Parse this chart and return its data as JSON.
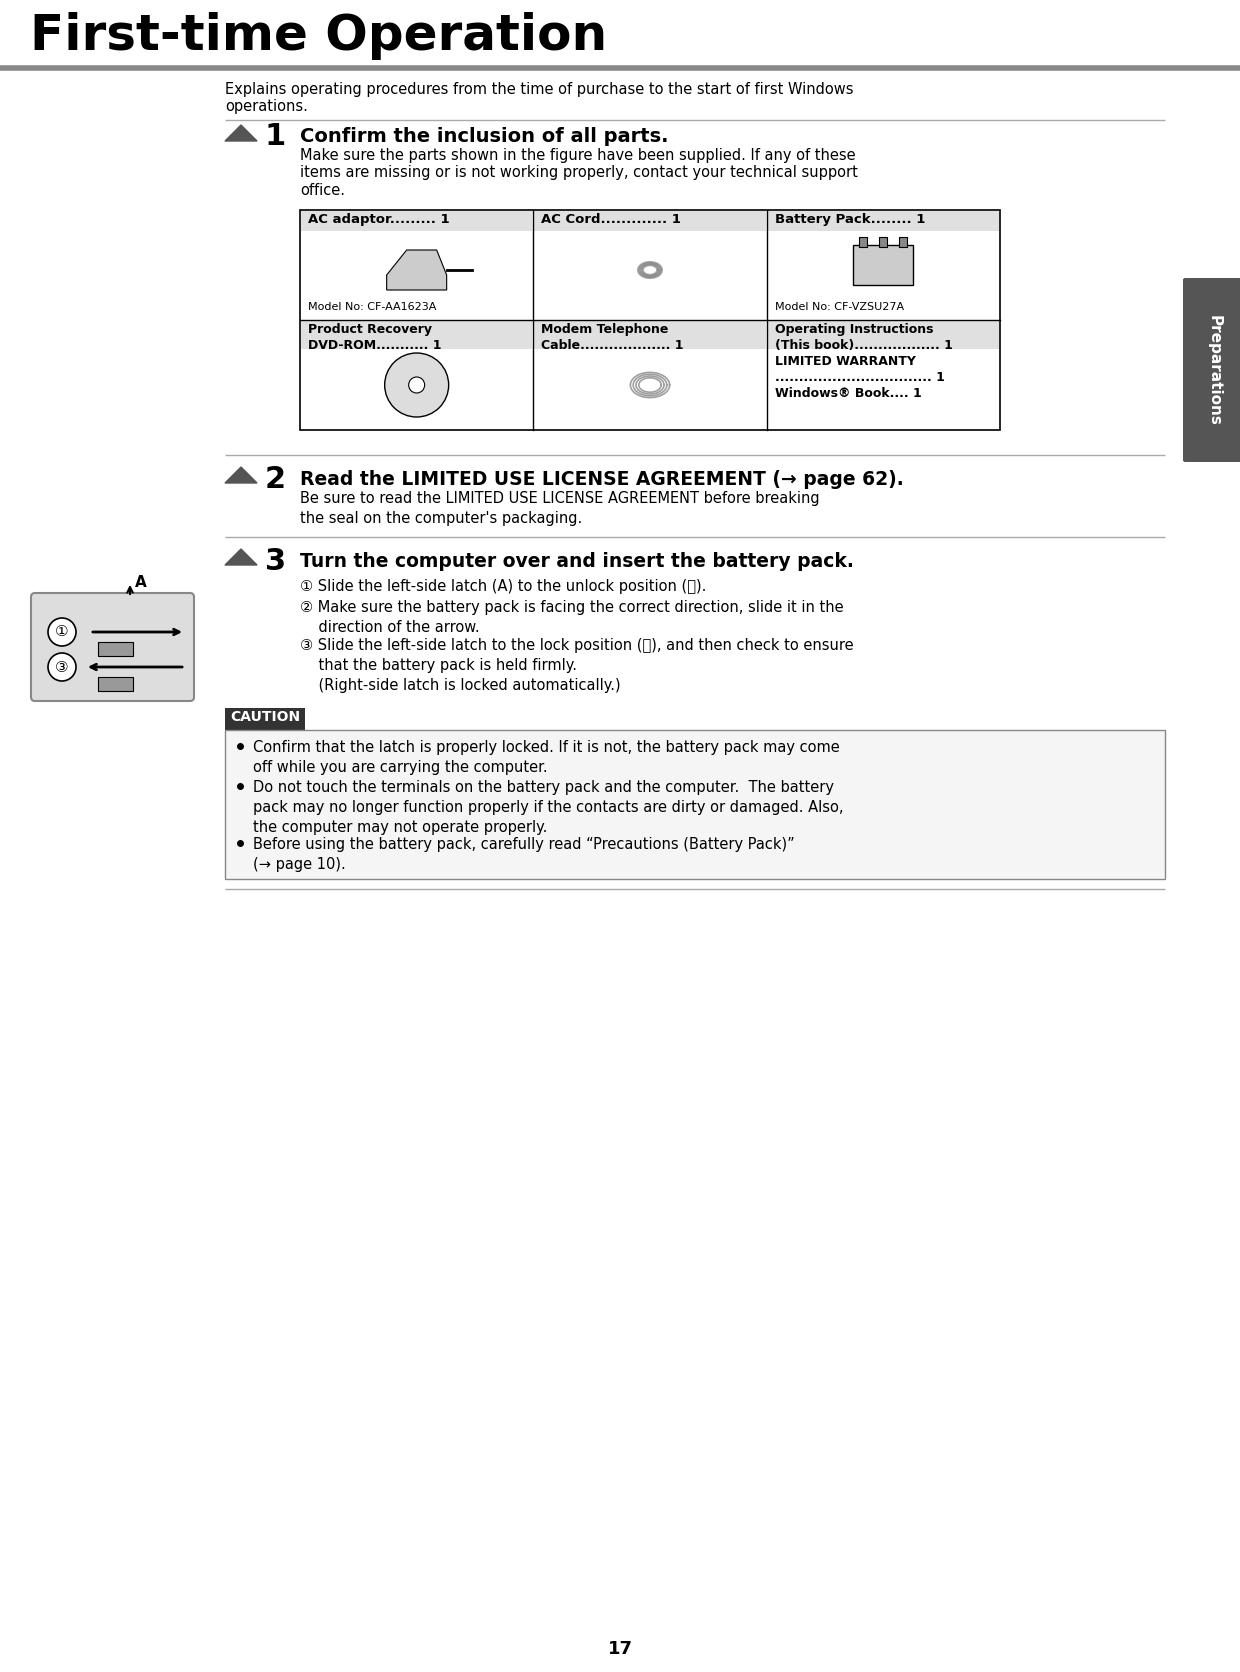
{
  "page_title": "First-time Operation",
  "page_number": "17",
  "tab_label": "Preparations",
  "bg_color": "#ffffff",
  "header_bg": "#ffffff",
  "header_bar_color": "#777777",
  "title_color": "#000000",
  "body_color": "#000000",
  "intro_text": "Explains operating procedures from the time of purchase to the start of first Windows\noperations.",
  "section1_num": "1",
  "section1_title": "Confirm the inclusion of all parts.",
  "section1_body": "Make sure the parts shown in the figure have been supplied. If any of these\nitems are missing or is not working properly, contact your technical support\noffice.",
  "table_cols": [
    {
      "header": "AC adaptor......... 1",
      "model": "Model No: CF-AA1623A"
    },
    {
      "header": "AC Cord............. 1",
      "model": ""
    },
    {
      "header": "Battery Pack........ 1",
      "model": "Model No: CF-VZSU27A"
    }
  ],
  "table_row2": [
    {
      "header": "Product Recovery\nDVD-ROM........... 1",
      "model": ""
    },
    {
      "header": "Modem Telephone\nCable................... 1",
      "model": ""
    },
    {
      "header": "Operating Instructions\n(This book).................. 1\nLIMITED WARRANTY\n................................. 1\nWindows® Book.... 1",
      "model": ""
    }
  ],
  "section2_num": "2",
  "section2_title": "Read the LIMITED USE LICENSE AGREEMENT (→ page 62).",
  "section2_body": "Be sure to read the LIMITED USE LICENSE AGREEMENT before breaking\nthe seal on the computer's packaging.",
  "section3_num": "3",
  "section3_title": "Turn the computer over and insert the battery pack.",
  "section3_steps": [
    "① Slide the left-side latch (A) to the unlock position (︿).",
    "② Make sure the battery pack is facing the correct direction, slide it in the\n    direction of the arrow.",
    "③ Slide the left-side latch to the lock position (﹀), and then check to ensure\n    that the battery pack is held firmly.\n    (Right-side latch is locked automatically.)"
  ],
  "caution_title": "CAUTION",
  "caution_bullets": [
    "Confirm that the latch is properly locked. If it is not, the battery pack may come\noff while you are carrying the computer.",
    "Do not touch the terminals on the battery pack and the computer.  The battery\npack may no longer function properly if the contacts are dirty or damaged. Also,\nthe computer may not operate properly.",
    "Before using the battery pack, carefully read “Precautions (Battery Pack)”\n(→ page 10)."
  ],
  "divider_color": "#999999",
  "step_triangle_color": "#555555",
  "caution_bg": "#f0f0f0",
  "caution_label_bg": "#333333",
  "caution_label_color": "#ffffff",
  "tab_bg": "#555555",
  "tab_text_color": "#ffffff"
}
